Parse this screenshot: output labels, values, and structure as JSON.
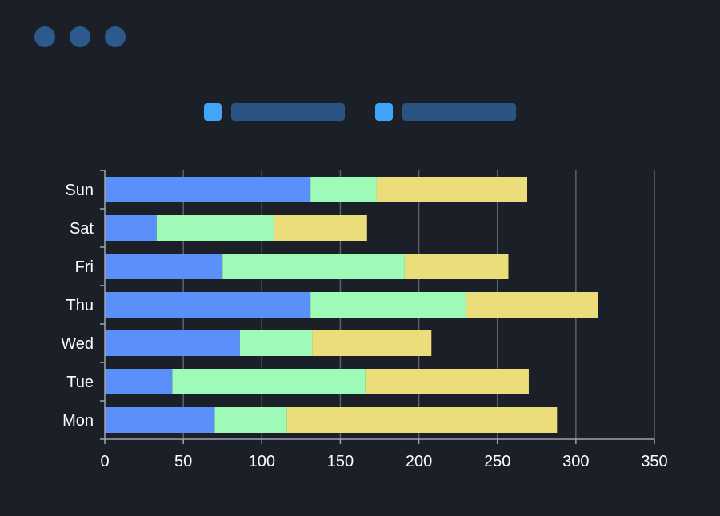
{
  "window": {
    "dots": [
      "window-dot-1",
      "window-dot-2",
      "window-dot-3"
    ]
  },
  "legend": {
    "items": [
      {
        "swatch_color": "#42a5f5"
      },
      {
        "swatch_color": "#42a5f5"
      }
    ]
  },
  "colors": {
    "background": "#1b1f28",
    "grid": "#5c6170",
    "axis": "#a0a4ad",
    "text": "#ffffff"
  },
  "chart_data": {
    "type": "bar",
    "orientation": "horizontal",
    "stacked": true,
    "categories": [
      "Mon",
      "Tue",
      "Wed",
      "Thu",
      "Fri",
      "Sat",
      "Sun"
    ],
    "series": [
      {
        "color": "#5b8ff9",
        "values": [
          70,
          43,
          86,
          131,
          75,
          33,
          131
        ]
      },
      {
        "color": "#9efab7",
        "values": [
          46,
          123,
          46,
          99,
          116,
          75,
          42
        ]
      },
      {
        "color": "#ebdd7a",
        "values": [
          172,
          104,
          76,
          84,
          66,
          59,
          96
        ]
      }
    ],
    "xlim": [
      0,
      350
    ],
    "xticks": [
      0,
      50,
      100,
      150,
      200,
      250,
      300,
      350
    ],
    "grid": "vertical"
  }
}
